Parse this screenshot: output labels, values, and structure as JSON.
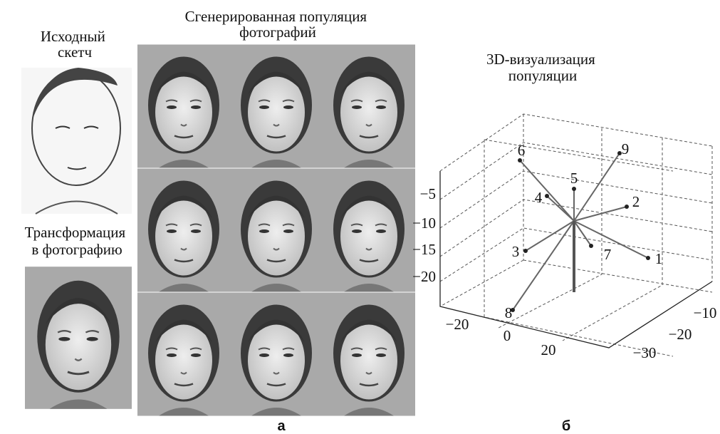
{
  "panel_a": {
    "sketch_title": [
      "Исходный",
      "скетч"
    ],
    "population_title": [
      "Сгенерированная популяция",
      "фотографий"
    ],
    "transform_title": [
      "Трансформация",
      "в фотографию"
    ],
    "caption": "а"
  },
  "panel_b": {
    "title": [
      "3D-визуализация",
      "популяции"
    ],
    "vertical_ticks": [
      "−5",
      "−10",
      "−15",
      "−20"
    ],
    "front_ticks": [
      "−20",
      "0",
      "20"
    ],
    "side_ticks": [
      "−10",
      "−20",
      "−30"
    ],
    "points": [
      "1",
      "2",
      "3",
      "4",
      "5",
      "6",
      "7",
      "8",
      "9"
    ],
    "caption": "б"
  }
}
